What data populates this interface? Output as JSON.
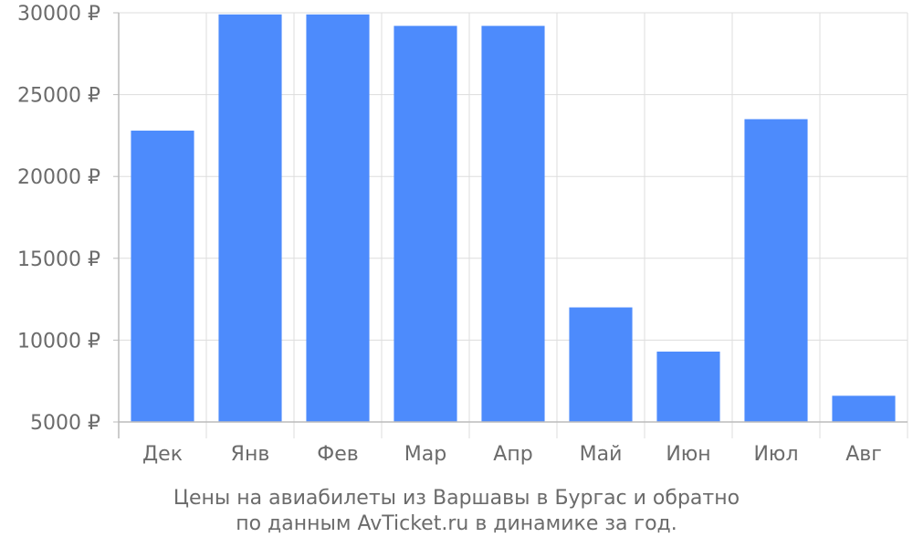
{
  "chart_data": {
    "type": "bar",
    "categories": [
      "Дек",
      "Янв",
      "Фев",
      "Мар",
      "Апр",
      "Май",
      "Июн",
      "Июл",
      "Авг"
    ],
    "values": [
      22800,
      29900,
      29900,
      29200,
      29200,
      12000,
      9300,
      23500,
      6600
    ],
    "ylim": [
      5000,
      30000
    ],
    "yticks": [
      5000,
      10000,
      15000,
      20000,
      25000,
      30000
    ],
    "ytick_suffix": " ₽",
    "bar_color": "#4d8bfc",
    "grid": true,
    "caption_line1": "Цены на авиабилеты из Варшавы в Бургас и обратно",
    "caption_line2": "по данным AvTicket.ru в динамике за год."
  }
}
